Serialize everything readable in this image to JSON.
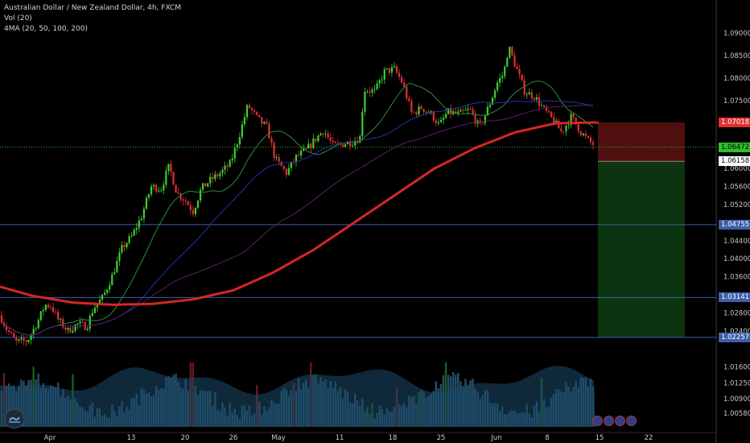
{
  "header": {
    "symbol": "Australian Dollar / New Zealand Dollar, 4h, FXCM",
    "volume_label": "Vol (20)",
    "ma_label": "4MA (20, 50, 100, 200)"
  },
  "colors": {
    "background": "#000000",
    "bull_candle": "#3fce2e",
    "bear_candle": "#e03030",
    "ma20": "#2e8b3a",
    "ma50": "#2432a8",
    "ma100": "#5a1e66",
    "ma200": "#d62626",
    "hline": "#3e5ea8",
    "current_line": "#2dbf2d",
    "stop_zone": "#5a1212",
    "target_zone": "#0d3a12",
    "volume": "#2a5d7a"
  },
  "chart_data": {
    "type": "candlestick",
    "title": "Australian Dollar / New Zealand Dollar, 4h, FXCM",
    "ylim": [
      1.004,
      1.0925
    ],
    "y_ticks": [
      "1.09000",
      "1.08500",
      "1.08000",
      "1.07500",
      "1.07018",
      "1.06472",
      "1.06158",
      "1.06000",
      "1.05600",
      "1.05200",
      "1.04755",
      "1.04400",
      "1.04000",
      "1.03600",
      "1.03141",
      "1.02800",
      "1.02400",
      "1.02259",
      "1.02257",
      "1.01600",
      "1.01250",
      "1.00900",
      "1.00580"
    ],
    "x_ticks": [
      "Apr",
      "13",
      "20",
      "26",
      "May",
      "11",
      "18",
      "25",
      "Jun",
      "8",
      "15",
      "22"
    ],
    "price_labels": [
      {
        "value": "1.07018",
        "color": "#e03030",
        "text_color": "#ffffff"
      },
      {
        "value": "1.06472",
        "color": "#2dbf2d",
        "text_color": "#000000"
      },
      {
        "value": "1.06158",
        "color": "#ffffff",
        "text_color": "#000000"
      },
      {
        "value": "1.04755",
        "color": "#3e5ea8",
        "text_color": "#ffffff"
      },
      {
        "value": "1.03141",
        "color": "#3e5ea8",
        "text_color": "#ffffff"
      },
      {
        "value": "1.02259",
        "color": "#2dbf2d",
        "text_color": "#000000"
      },
      {
        "value": "1.02257",
        "color": "#3e5ea8",
        "text_color": "#ffffff"
      }
    ],
    "horizontal_lines": [
      1.04755,
      1.03141,
      1.02257
    ],
    "current_price": 1.06472,
    "position": {
      "entry": 1.06158,
      "stop": 1.07018,
      "target": 1.02259
    },
    "price_path_anchors": [
      [
        0,
        1.0275
      ],
      [
        8,
        1.0245
      ],
      [
        20,
        1.0215
      ],
      [
        34,
        1.0218
      ],
      [
        48,
        1.0265
      ],
      [
        56,
        1.0298
      ],
      [
        64,
        1.0295
      ],
      [
        72,
        1.0265
      ],
      [
        84,
        1.024
      ],
      [
        96,
        1.0255
      ],
      [
        108,
        1.025
      ],
      [
        116,
        1.029
      ],
      [
        128,
        1.0315
      ],
      [
        140,
        1.0365
      ],
      [
        152,
        1.0425
      ],
      [
        164,
        1.045
      ],
      [
        176,
        1.0495
      ],
      [
        188,
        1.056
      ],
      [
        200,
        1.0555
      ],
      [
        210,
        1.0605
      ],
      [
        220,
        1.0545
      ],
      [
        230,
        1.053
      ],
      [
        240,
        1.0505
      ],
      [
        250,
        1.0555
      ],
      [
        262,
        1.0575
      ],
      [
        274,
        1.059
      ],
      [
        286,
        1.061
      ],
      [
        296,
        1.0665
      ],
      [
        308,
        1.074
      ],
      [
        320,
        1.071
      ],
      [
        332,
        1.069
      ],
      [
        342,
        1.062
      ],
      [
        356,
        1.059
      ],
      [
        368,
        1.0625
      ],
      [
        380,
        1.064
      ],
      [
        392,
        1.0665
      ],
      [
        402,
        1.0685
      ],
      [
        414,
        1.065
      ],
      [
        426,
        1.0655
      ],
      [
        440,
        1.066
      ],
      [
        448,
        1.067
      ],
      [
        452,
        1.0775
      ],
      [
        466,
        1.077
      ],
      [
        478,
        1.0815
      ],
      [
        490,
        1.082
      ],
      [
        500,
        1.079
      ],
      [
        512,
        1.072
      ],
      [
        524,
        1.0735
      ],
      [
        536,
        1.072
      ],
      [
        546,
        1.0695
      ],
      [
        556,
        1.0725
      ],
      [
        570,
        1.072
      ],
      [
        584,
        1.073
      ],
      [
        596,
        1.069
      ],
      [
        608,
        1.074
      ],
      [
        618,
        1.079
      ],
      [
        626,
        1.081
      ],
      [
        632,
        1.087
      ],
      [
        640,
        1.083
      ],
      [
        652,
        1.077
      ],
      [
        664,
        1.076
      ],
      [
        676,
        1.073
      ],
      [
        688,
        1.0705
      ],
      [
        698,
        1.068
      ],
      [
        710,
        1.0715
      ],
      [
        722,
        1.068
      ],
      [
        732,
        1.066
      ],
      [
        740,
        1.065
      ]
    ],
    "volume_scale": "relative"
  },
  "footer": {
    "events": [
      "event-1",
      "event-2",
      "event-3",
      "event-4"
    ]
  }
}
